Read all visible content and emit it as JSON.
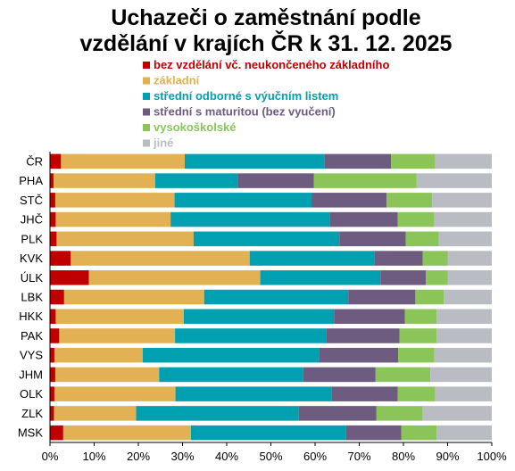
{
  "chart_data": {
    "type": "bar",
    "orientation": "horizontal",
    "stacked": "percent",
    "title_lines": [
      "Uchazeči o zaměstnání podle",
      "vzdělání v krajích ČR k 31. 12. 2025"
    ],
    "legend_placement": "top-left",
    "grid": false,
    "xlim": [
      0,
      100
    ],
    "x_ticks": [
      "0%",
      "10%",
      "20%",
      "30%",
      "40%",
      "50%",
      "60%",
      "70%",
      "80%",
      "90%",
      "100%"
    ],
    "categories": [
      "ČR",
      "PHA",
      "STČ",
      "JHČ",
      "PLK",
      "KVK",
      "ÚLK",
      "LBK",
      "HKK",
      "PAK",
      "VYS",
      "JHM",
      "OLK",
      "ZLK",
      "MSK"
    ],
    "series": [
      {
        "name": "bez vzdělání vč. neukončeného základního",
        "color": "#c00000",
        "values": [
          2.5,
          0.8,
          1.2,
          1.3,
          1.5,
          4.7,
          8.8,
          3.2,
          1.3,
          2.1,
          1.0,
          1.2,
          1.0,
          0.9,
          3.0
        ]
      },
      {
        "name": "základní",
        "color": "#e1b154",
        "values": [
          28.0,
          23.0,
          27.0,
          26.0,
          31.0,
          40.5,
          38.8,
          31.7,
          29.0,
          26.2,
          20.0,
          23.5,
          27.4,
          18.6,
          28.9
        ]
      },
      {
        "name": "střední odborné s výučním listem",
        "color": "#00a0b0",
        "values": [
          31.7,
          18.7,
          31.0,
          36.0,
          33.0,
          28.2,
          27.2,
          32.6,
          34.0,
          34.2,
          40.0,
          32.6,
          35.3,
          36.8,
          35.1
        ]
      },
      {
        "name": "střední s maturitou (bez vyučení)",
        "color": "#6e5c80",
        "values": [
          15.0,
          17.2,
          17.0,
          15.4,
          15.0,
          11.0,
          10.3,
          15.2,
          16.0,
          16.6,
          17.8,
          16.4,
          15.0,
          17.6,
          12.5
        ]
      },
      {
        "name": "vysokoškolské",
        "color": "#8bc55a",
        "values": [
          10.0,
          23.3,
          10.3,
          8.3,
          7.5,
          5.6,
          4.9,
          6.4,
          7.2,
          8.4,
          8.2,
          12.4,
          8.5,
          10.5,
          8.0
        ]
      },
      {
        "name": "jiné",
        "color": "#b9bcc2",
        "values": [
          12.8,
          17.0,
          13.5,
          13.0,
          12.0,
          10.0,
          10.0,
          10.9,
          12.5,
          12.5,
          13.0,
          13.9,
          12.8,
          15.6,
          12.5
        ]
      }
    ]
  }
}
